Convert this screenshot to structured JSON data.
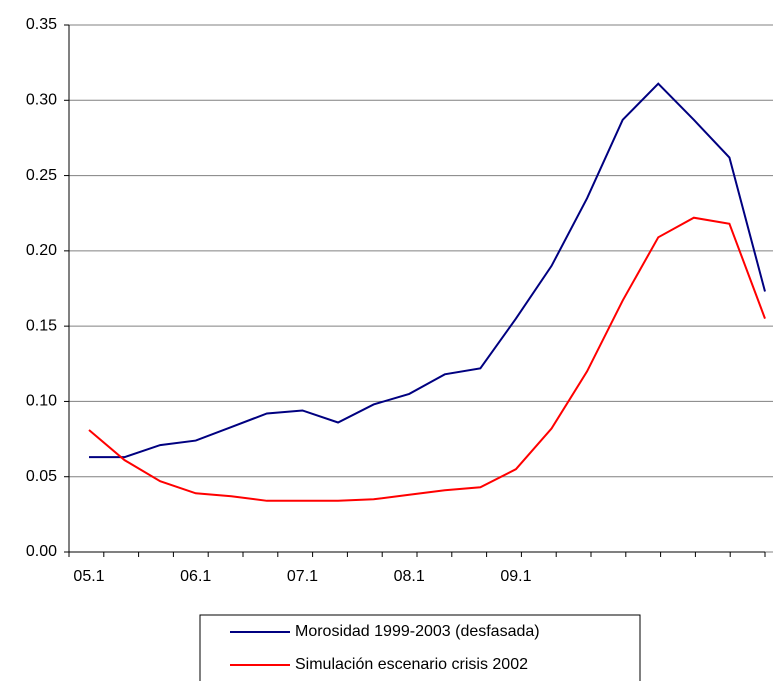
{
  "chart_data": {
    "type": "line",
    "categories": [
      "05.1",
      null,
      null,
      "06.1",
      null,
      null,
      "07.1",
      null,
      null,
      "08.1",
      null,
      null,
      "09.1",
      null,
      null,
      null,
      null,
      null,
      null,
      null
    ],
    "series": [
      {
        "name": "Morosidad 1999-2003 (desfasada)",
        "color": "#000080",
        "values": [
          0.063,
          0.063,
          0.071,
          0.074,
          0.083,
          0.092,
          0.094,
          0.086,
          0.098,
          0.105,
          0.118,
          0.122,
          0.155,
          0.19,
          0.235,
          0.287,
          0.311,
          0.287,
          0.262,
          0.173
        ]
      },
      {
        "name": "Simulación escenario crisis 2002",
        "color": "#ff0000",
        "values": [
          0.081,
          0.061,
          0.047,
          0.039,
          0.037,
          0.034,
          0.034,
          0.034,
          0.035,
          0.038,
          0.041,
          0.043,
          0.055,
          0.082,
          0.12,
          0.167,
          0.209,
          0.222,
          0.218,
          0.155
        ]
      }
    ],
    "ylim": [
      0,
      0.35
    ],
    "yticks": [
      {
        "value": 0,
        "label": "0.00"
      },
      {
        "value": 0.05,
        "label": "0.05"
      },
      {
        "value": 0.1,
        "label": "0.10"
      },
      {
        "value": 0.15,
        "label": "0.15"
      },
      {
        "value": 0.2,
        "label": "0.20"
      },
      {
        "value": 0.25,
        "label": "0.25"
      },
      {
        "value": 0.3,
        "label": "0.30"
      },
      {
        "value": 0.35,
        "label": "0.35"
      }
    ],
    "grid": true,
    "legend": "bottom"
  }
}
